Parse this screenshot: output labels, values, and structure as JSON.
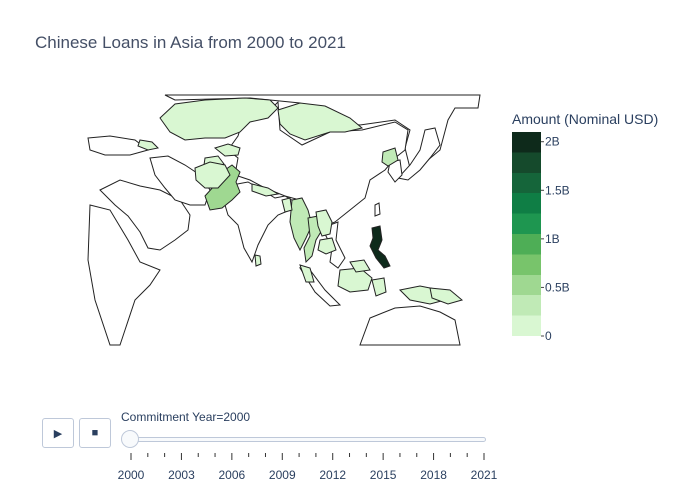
{
  "chart_data": {
    "type": "choropleth",
    "title": "Chinese Loans in Asia from 2000 to 2021",
    "colorbar": {
      "title": "Amount (Nominal USD)",
      "range": [
        0,
        2100000000
      ],
      "tick_values": [
        0,
        500000000,
        1000000000,
        1500000000,
        2000000000
      ],
      "tick_labels": [
        "0",
        "0.5B",
        "1B",
        "1.5B",
        "2B"
      ],
      "colors": [
        "#d9f7d2",
        "#c0eab6",
        "#9fd891",
        "#78c46b",
        "#4eae56",
        "#1e9650",
        "#0f7e45",
        "#15653a",
        "#154a2c",
        "#0e2a1b"
      ]
    },
    "frame_label": "Commitment Year=2000",
    "regions": [
      {
        "name": "Philippines",
        "value": 2000000000
      },
      {
        "name": "Pakistan",
        "value": 500000000
      },
      {
        "name": "Myanmar",
        "value": 380000000
      },
      {
        "name": "Thailand",
        "value": 220000000
      },
      {
        "name": "North Korea",
        "value": 300000000
      },
      {
        "name": "Indonesia",
        "value": 200000000
      },
      {
        "name": "Kazakhstan",
        "value": 60000000
      },
      {
        "name": "Mongolia",
        "value": 40000000
      },
      {
        "name": "Kyrgyzstan",
        "value": 80000000
      },
      {
        "name": "Tajikistan",
        "value": 90000000
      },
      {
        "name": "Afghanistan",
        "value": 50000000
      },
      {
        "name": "Nepal",
        "value": 70000000
      },
      {
        "name": "Bangladesh",
        "value": 150000000
      },
      {
        "name": "Laos",
        "value": 100000000
      },
      {
        "name": "Cambodia",
        "value": 150000000
      },
      {
        "name": "Sri Lanka",
        "value": 150000000
      },
      {
        "name": "Malaysia",
        "value": 40000000
      },
      {
        "name": "Papua New Guinea",
        "value": 50000000
      },
      {
        "name": "Georgia",
        "value": 60000000
      }
    ]
  },
  "slider": {
    "ticks": [
      "2000",
      "2003",
      "2006",
      "2009",
      "2012",
      "2015",
      "2018",
      "2021"
    ],
    "start_year": 2000,
    "end_year": 2021,
    "current_year": 2000
  },
  "controls": {
    "play_icon": "▶",
    "stop_icon": "■"
  }
}
